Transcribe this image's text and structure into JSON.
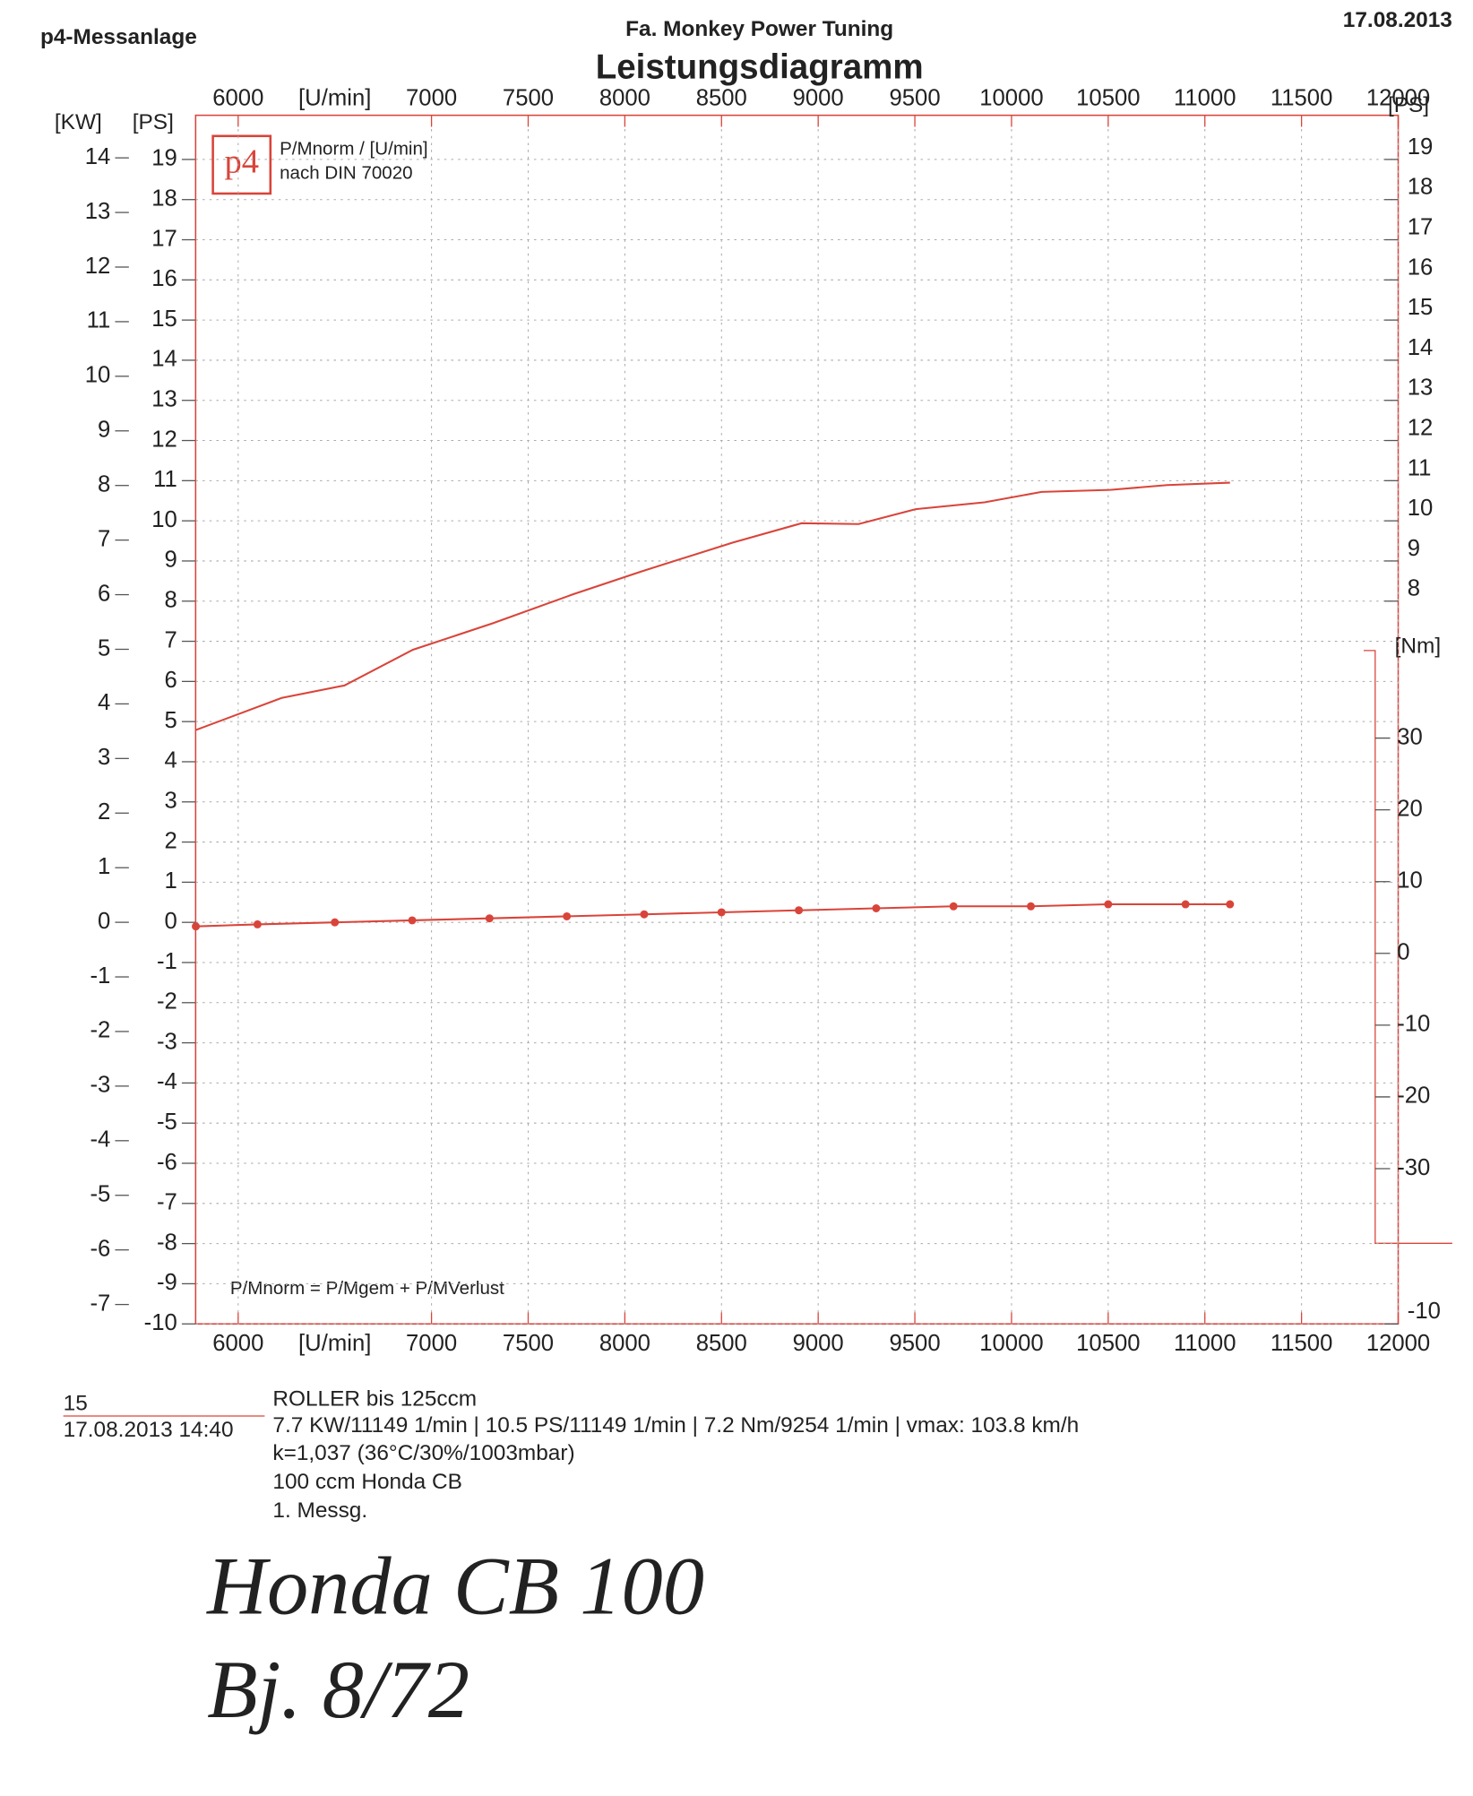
{
  "header": {
    "left": "p4-Messanlage",
    "company": "Fa. Monkey Power Tuning",
    "date": "17.08.2013"
  },
  "chart_data": {
    "type": "line",
    "title": "Leistungsdiagramm",
    "xlabel": "[U/min]",
    "ylabel": "[PS]",
    "y2label": "[KW]",
    "right_ylabel": "[PS]",
    "legend_lines": [
      "P/Mnorm / [U/min]",
      "nach DIN 70020"
    ],
    "logo": "p4",
    "annotation": "P/Mnorm = P/Mgem + P/MVerlust",
    "xlim": [
      5780,
      12000
    ],
    "xticks": [
      6000,
      7000,
      7500,
      8000,
      8500,
      9000,
      9500,
      10000,
      10500,
      11000,
      11500,
      12000
    ],
    "ylim": [
      -10,
      20.1
    ],
    "yticks": [
      -10,
      -9,
      -8,
      -7,
      -6,
      -5,
      -4,
      -3,
      -2,
      -1,
      0,
      1,
      2,
      3,
      4,
      5,
      6,
      7,
      8,
      9,
      10,
      11,
      12,
      13,
      14,
      15,
      16,
      17,
      18,
      19
    ],
    "y2lim": [
      -7.355,
      14.78
    ],
    "y2ticks": [
      -7,
      -6,
      -5,
      -4,
      -3,
      -2,
      -1,
      0,
      1,
      2,
      3,
      4,
      5,
      6,
      7,
      8,
      9,
      10,
      11,
      12,
      13,
      14
    ],
    "right_yticks": [
      -10,
      8,
      9,
      10,
      11,
      12,
      13,
      14,
      15,
      16,
      17,
      18,
      19
    ],
    "nm_axis": {
      "label": "[Nm]",
      "lim": [
        -40.4,
        42.2
      ],
      "ticks": [
        -30,
        -20,
        -10,
        0,
        10,
        20,
        30
      ]
    },
    "grid": true,
    "series": [
      {
        "name": "P/Mnorm",
        "color": "#d9443a",
        "style": "line",
        "x": [
          5781,
          6225,
          6550,
          6904,
          7318,
          7732,
          8086,
          8559,
          8914,
          9209,
          9505,
          9860,
          10155,
          10510,
          10805,
          11130
        ],
        "values": [
          4.79,
          5.59,
          5.9,
          6.79,
          7.45,
          8.17,
          8.74,
          9.46,
          9.94,
          9.92,
          10.29,
          10.46,
          10.72,
          10.77,
          10.89,
          10.95
        ]
      },
      {
        "name": "P/MVerlust",
        "color": "#d9443a",
        "style": "dots",
        "x": [
          5781,
          6100,
          6500,
          6900,
          7300,
          7700,
          8100,
          8500,
          8900,
          9300,
          9700,
          10100,
          10500,
          10900,
          11130
        ],
        "values": [
          -0.1,
          -0.05,
          0,
          0.05,
          0.1,
          0.15,
          0.2,
          0.25,
          0.3,
          0.35,
          0.4,
          0.4,
          0.45,
          0.45,
          0.45
        ]
      }
    ]
  },
  "footer": {
    "number": "15",
    "datetime": "17.08.2013  14:40",
    "lines": [
      "ROLLER bis   125ccm",
      "7.7 KW/11149 1/min  |  10.5 PS/11149 1/min  |  7.2 Nm/9254 1/min | vmax: 103.8 km/h",
      "k=1,037 (36°C/30%/1003mbar)",
      "100 ccm Honda CB",
      "1. Messg."
    ],
    "handwriting": [
      "Honda  CB 100",
      "Bj. 8/72"
    ]
  }
}
